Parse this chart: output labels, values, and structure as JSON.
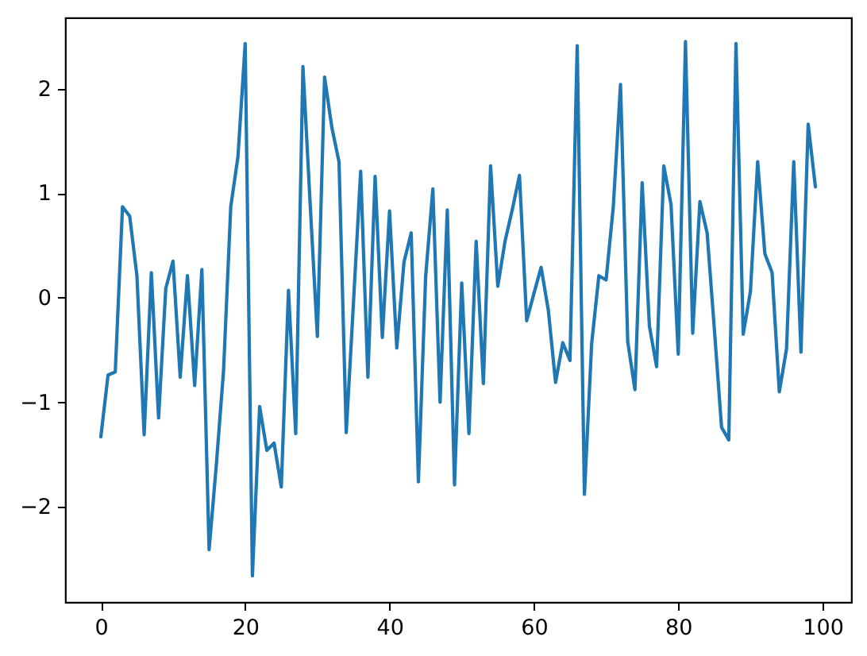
{
  "chart_data": {
    "type": "line",
    "color": "#1f77b4",
    "line_style": "solid",
    "x": [
      0,
      1,
      2,
      3,
      4,
      5,
      6,
      7,
      8,
      9,
      10,
      11,
      12,
      13,
      14,
      15,
      16,
      17,
      18,
      19,
      20,
      21,
      22,
      23,
      24,
      25,
      26,
      27,
      28,
      29,
      30,
      31,
      32,
      33,
      34,
      35,
      36,
      37,
      38,
      39,
      40,
      41,
      42,
      43,
      44,
      45,
      46,
      47,
      48,
      49,
      50,
      51,
      52,
      53,
      54,
      55,
      56,
      57,
      58,
      59,
      60,
      61,
      62,
      63,
      64,
      65,
      66,
      67,
      68,
      69,
      70,
      71,
      72,
      73,
      74,
      75,
      76,
      77,
      78,
      79,
      80,
      81,
      82,
      83,
      84,
      85,
      86,
      87,
      88,
      89,
      90,
      91,
      92,
      93,
      94,
      95,
      96,
      97,
      98,
      99
    ],
    "values": [
      -1.33,
      -0.74,
      -0.71,
      0.87,
      0.78,
      0.21,
      -1.31,
      0.24,
      -1.15,
      0.09,
      0.35,
      -0.76,
      0.21,
      -0.84,
      0.27,
      -2.41,
      -1.6,
      -0.7,
      0.87,
      1.35,
      2.43,
      -2.66,
      -1.04,
      -1.46,
      -1.39,
      -1.81,
      0.07,
      -1.3,
      2.21,
      0.9,
      -0.37,
      2.11,
      1.63,
      1.3,
      -1.29,
      -0.05,
      1.21,
      -0.76,
      1.16,
      -0.38,
      0.83,
      -0.48,
      0.34,
      0.62,
      -1.76,
      0.2,
      1.04,
      -1.0,
      0.84,
      -1.79,
      0.14,
      -1.3,
      0.54,
      -0.82,
      1.26,
      0.11,
      0.54,
      0.84,
      1.17,
      -0.22,
      0.04,
      0.29,
      -0.12,
      -0.81,
      -0.43,
      -0.6,
      2.41,
      -1.88,
      -0.44,
      0.21,
      0.17,
      0.87,
      2.04,
      -0.42,
      -0.88,
      1.1,
      -0.27,
      -0.66,
      1.26,
      0.89,
      -0.54,
      2.45,
      -0.34,
      0.92,
      0.62,
      -0.3,
      -1.24,
      -1.36,
      2.43,
      -0.35,
      0.06,
      1.3,
      0.42,
      0.24,
      -0.9,
      -0.49,
      1.3,
      -0.52,
      1.66,
      1.06
    ],
    "xlim": [
      -4.95,
      103.95
    ],
    "ylim": [
      -2.91,
      2.68
    ],
    "xticks": [
      0,
      20,
      40,
      60,
      80,
      100
    ],
    "yticks": [
      -2,
      -1,
      0,
      1,
      2
    ]
  }
}
